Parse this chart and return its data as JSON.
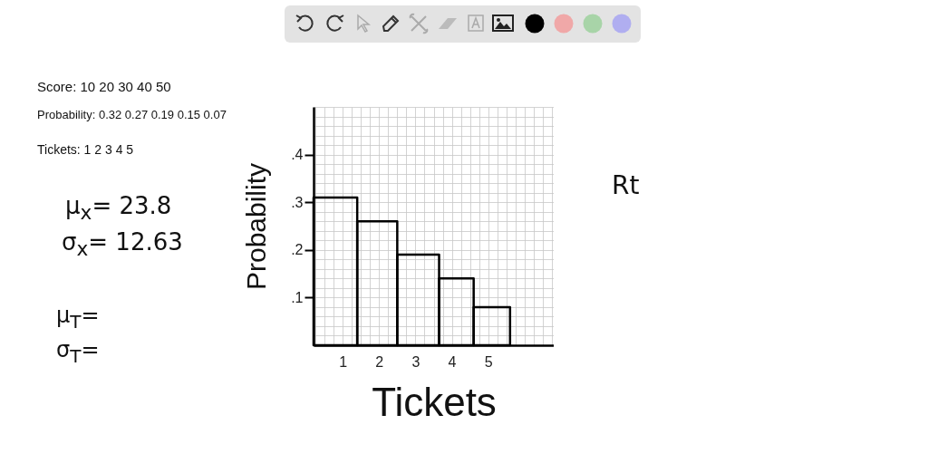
{
  "chart_data": {
    "type": "histogram",
    "xlabel": "Tickets",
    "ylabel": "Probability",
    "bins": [
      0.2,
      1.4,
      2.5,
      3.65,
      4.6,
      5.6
    ],
    "values": [
      0.31,
      0.26,
      0.19,
      0.14,
      0.08
    ],
    "color": "#000000",
    "xlim": [
      0.2,
      6.8
    ],
    "ylim": [
      0,
      0.5
    ],
    "xticks": [
      {
        "value": 0.25,
        "label": null
      },
      {
        "value": 0.5,
        "label": null
      },
      {
        "value": 0.75,
        "label": null
      },
      1,
      {
        "value": 1.25,
        "label": null
      },
      {
        "value": 1.5,
        "label": null
      },
      {
        "value": 1.75,
        "label": null
      },
      2,
      {
        "value": 2.25,
        "label": null
      },
      {
        "value": 2.5,
        "label": null
      },
      {
        "value": 2.75,
        "label": null
      },
      3,
      {
        "value": 3.25,
        "label": null
      },
      {
        "value": 3.5,
        "label": null
      },
      {
        "value": 3.75,
        "label": null
      },
      4,
      {
        "value": 4.25,
        "label": null
      },
      {
        "value": 4.5,
        "label": null
      },
      {
        "value": 4.75,
        "label": null
      },
      5,
      {
        "value": 5.25,
        "label": null
      },
      {
        "value": 5.5,
        "label": null
      },
      {
        "value": 5.75,
        "label": null
      },
      {
        "value": 6,
        "label": null
      },
      {
        "value": 6.25,
        "label": null
      },
      {
        "value": 6.5,
        "label": null
      },
      {
        "value": 6.75,
        "label": null
      }
    ],
    "yticks": [
      {
        "value": 0.02,
        "label": null
      },
      {
        "value": 0.04,
        "label": null
      },
      {
        "value": 0.06,
        "label": null
      },
      {
        "value": 0.08,
        "label": null
      },
      {
        "value": 0.1,
        "label": ".1"
      },
      {
        "value": 0.12,
        "label": null
      },
      {
        "value": 0.14,
        "label": null
      },
      {
        "value": 0.16,
        "label": null
      },
      {
        "value": 0.18,
        "label": null
      },
      {
        "value": 0.2,
        "label": ".2"
      },
      {
        "value": 0.22,
        "label": null
      },
      {
        "value": 0.24,
        "label": null
      },
      {
        "value": 0.26,
        "label": null
      },
      {
        "value": 0.28,
        "label": null
      },
      {
        "value": 0.3,
        "label": ".3"
      },
      {
        "value": 0.32,
        "label": null
      },
      {
        "value": 0.34,
        "label": null
      },
      {
        "value": 0.36,
        "label": null
      },
      {
        "value": 0.38,
        "label": null
      },
      {
        "value": 0.4,
        "label": ".4"
      },
      {
        "value": 0.42,
        "label": null
      },
      {
        "value": 0.44,
        "label": null
      },
      {
        "value": 0.46,
        "label": null
      },
      {
        "value": 0.48,
        "label": null
      },
      {
        "value": 0.5,
        "label": null
      }
    ],
    "grid": true,
    "annotations": [
      "Score: 10 20 30 40 50",
      "Probability: 0.32 0.27 0.19 0.15 0.07",
      "Tickets: 1 2 3 4 5",
      "μ$_{x}$= 23.8",
      "σ$_{x}$= 12.63",
      "μ$_{T}$=",
      "σ$_{T}$=",
      "Rt"
    ]
  }
}
